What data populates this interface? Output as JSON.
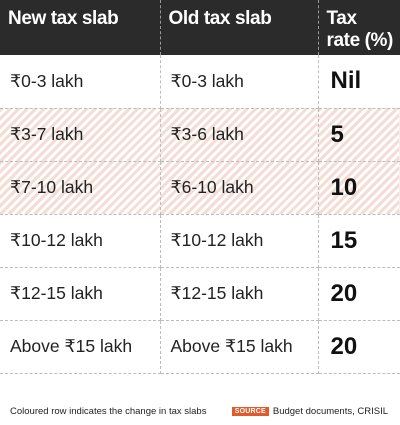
{
  "chart_data": {
    "type": "table",
    "columns": [
      "New tax slab",
      "Old tax slab",
      "Tax rate (%)"
    ],
    "rows": [
      {
        "new_slab": "₹0-3 lakh",
        "old_slab": "₹0-3 lakh",
        "rate": "Nil",
        "changed": false
      },
      {
        "new_slab": "₹3-7 lakh",
        "old_slab": "₹3-6 lakh",
        "rate": "5",
        "changed": true
      },
      {
        "new_slab": "₹7-10 lakh",
        "old_slab": "₹6-10 lakh",
        "rate": "10",
        "changed": true
      },
      {
        "new_slab": "₹10-12 lakh",
        "old_slab": "₹10-12 lakh",
        "rate": "15",
        "changed": false
      },
      {
        "new_slab": "₹12-15 lakh",
        "old_slab": "₹12-15 lakh",
        "rate": "20",
        "changed": false
      },
      {
        "new_slab": "Above ₹15 lakh",
        "old_slab": "Above ₹15 lakh",
        "rate": "20",
        "changed": false
      }
    ],
    "highlight_color": "#f4ded4",
    "header_color": "#2b2b2b"
  },
  "footer": {
    "note": "Coloured row indicates the change in tax slabs",
    "source_badge": "SOURCE",
    "source_text": "Budget documents, CRISIL",
    "badge_color": "#e05a2b"
  }
}
